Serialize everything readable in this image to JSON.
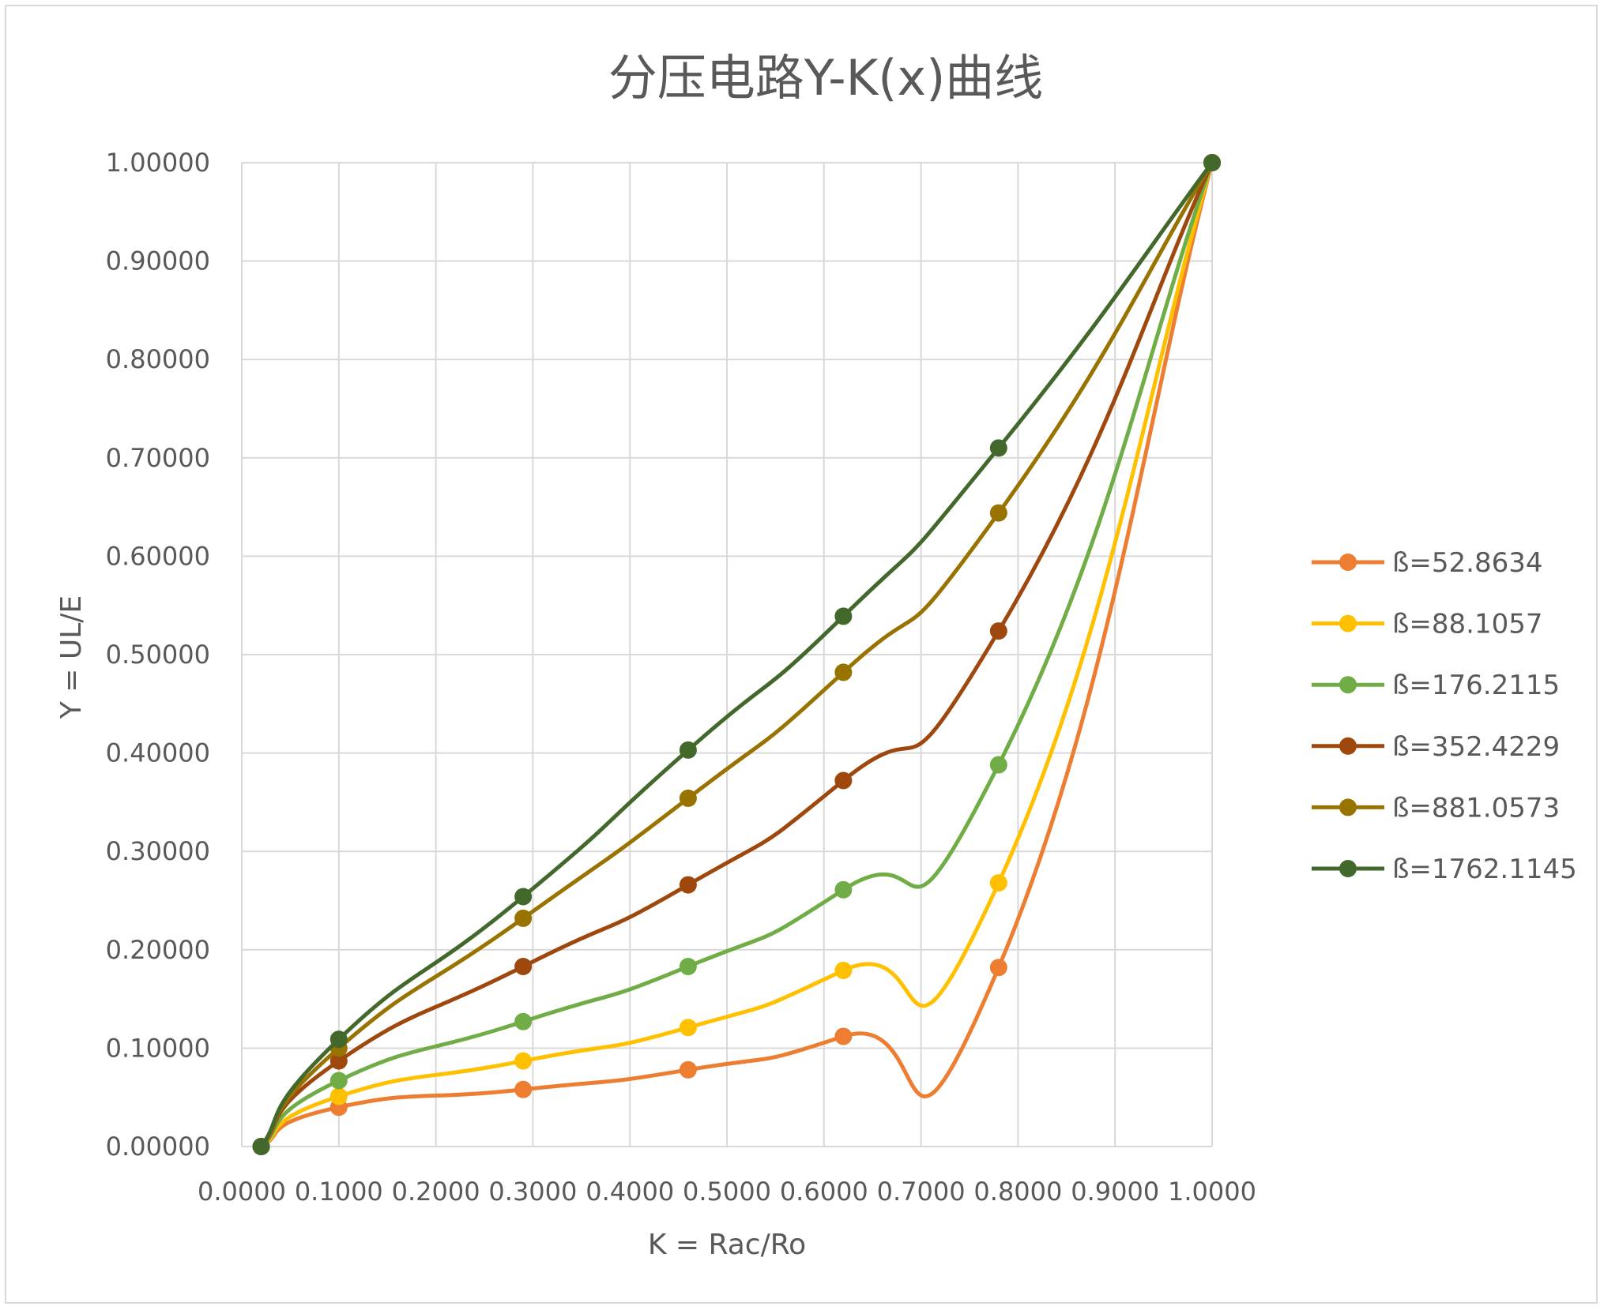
{
  "chart_data": {
    "type": "line",
    "title": "分压电路Y-K(x)曲线",
    "xlabel": "K = Rac/Ro",
    "ylabel": "Y = UL/E",
    "xlim": [
      0,
      1
    ],
    "ylim": [
      0,
      1
    ],
    "x_ticks": [
      "0.0000",
      "0.1000",
      "0.2000",
      "0.3000",
      "0.4000",
      "0.5000",
      "0.6000",
      "0.7000",
      "0.8000",
      "0.9000",
      "1.0000"
    ],
    "y_ticks": [
      "0.00000",
      "0.10000",
      "0.20000",
      "0.30000",
      "0.40000",
      "0.50000",
      "0.60000",
      "0.70000",
      "0.80000",
      "0.90000",
      "1.00000"
    ],
    "grid": true,
    "smooth": true,
    "legend_position": "right",
    "x": [
      0.02,
      0.1,
      0.29,
      0.46,
      0.62,
      0.78,
      1.0
    ],
    "series": [
      {
        "name": "ß=52.8634",
        "color": "#ED7D31",
        "values": [
          0.0,
          0.04,
          0.058,
          0.078,
          0.112,
          0.182,
          1.0
        ]
      },
      {
        "name": "ß=88.1057",
        "color": "#FFC000",
        "values": [
          0.0,
          0.051,
          0.087,
          0.121,
          0.179,
          0.268,
          1.0
        ]
      },
      {
        "name": "ß=176.2115",
        "color": "#70AD47",
        "values": [
          0.0,
          0.067,
          0.127,
          0.183,
          0.261,
          0.388,
          1.0
        ]
      },
      {
        "name": "ß=352.4229",
        "color": "#9E480E",
        "values": [
          0.0,
          0.087,
          0.183,
          0.266,
          0.372,
          0.524,
          1.0
        ]
      },
      {
        "name": "ß=881.0573",
        "color": "#997300",
        "values": [
          0.0,
          0.1,
          0.232,
          0.354,
          0.482,
          0.644,
          1.0
        ]
      },
      {
        "name": "ß=1762.1145",
        "color": "#43682B",
        "values": [
          0.0,
          0.109,
          0.254,
          0.403,
          0.539,
          0.71,
          1.0
        ]
      }
    ]
  }
}
